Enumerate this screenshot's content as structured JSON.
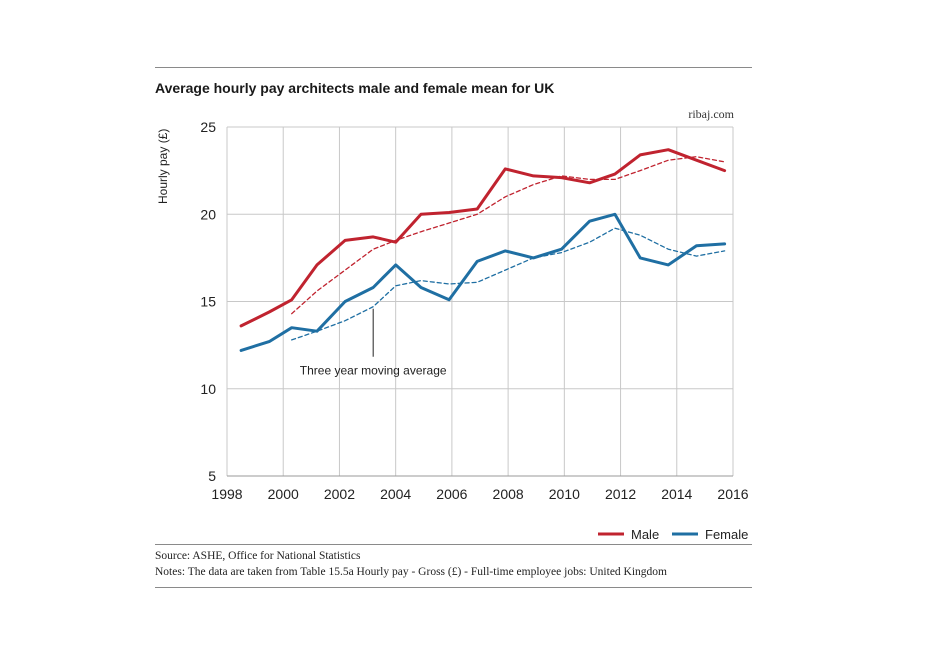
{
  "header": {
    "title": "Average hourly pay architects male and female mean for UK",
    "credit": "ribaj.com"
  },
  "footer": {
    "source": "Source: ASHE, Office for National Statistics",
    "notes": "Notes: The data are taken from Table 15.5a  Hourly pay - Gross (£) - Full-time employee jobs: United Kingdom"
  },
  "chart_data": {
    "type": "line",
    "title": "Average hourly pay architects male and female mean for UK",
    "xlabel": "",
    "ylabel": "Hourly pay (£)",
    "xlim": [
      1998,
      2016
    ],
    "ylim": [
      5,
      25
    ],
    "x_ticks": [
      1998,
      2000,
      2002,
      2004,
      2006,
      2008,
      2010,
      2012,
      2014,
      2016
    ],
    "y_ticks": [
      5,
      10,
      15,
      20,
      25
    ],
    "x": [
      1998.5,
      1999.5,
      2000.3,
      2001.2,
      2002.2,
      2003.2,
      2004.0,
      2004.9,
      2005.9,
      2006.9,
      2007.9,
      2008.9,
      2009.9,
      2010.9,
      2011.8,
      2012.7,
      2013.7,
      2014.7,
      2015.7
    ],
    "series": [
      {
        "name": "Male",
        "color": "#c0232f",
        "style": "solid",
        "values": [
          13.6,
          14.4,
          15.1,
          17.1,
          18.5,
          18.7,
          18.4,
          20.0,
          20.1,
          20.3,
          22.6,
          22.2,
          22.1,
          21.8,
          22.3,
          23.4,
          23.7,
          23.1,
          22.5
        ]
      },
      {
        "name": "Female",
        "color": "#1f6fa3",
        "style": "solid",
        "values": [
          12.2,
          12.7,
          13.5,
          13.3,
          15.0,
          15.8,
          17.1,
          15.8,
          15.1,
          17.3,
          17.9,
          17.5,
          18.0,
          19.6,
          20.0,
          17.5,
          17.1,
          18.2,
          18.3
        ]
      },
      {
        "name": "Male three year moving average",
        "color": "#c0232f",
        "style": "dashed",
        "x": [
          2000.3,
          2001.2,
          2002.2,
          2003.2,
          2004.0,
          2004.9,
          2005.9,
          2006.9,
          2007.9,
          2008.9,
          2009.9,
          2010.9,
          2011.8,
          2012.7,
          2013.7,
          2014.7,
          2015.7
        ],
        "values": [
          14.3,
          15.6,
          16.8,
          18.0,
          18.5,
          19.0,
          19.5,
          20.0,
          21.0,
          21.7,
          22.2,
          22.0,
          22.0,
          22.5,
          23.1,
          23.3,
          23.0
        ]
      },
      {
        "name": "Female three year moving average",
        "color": "#1f6fa3",
        "style": "dashed",
        "x": [
          2000.3,
          2001.2,
          2002.2,
          2003.2,
          2004.0,
          2004.9,
          2005.9,
          2006.9,
          2007.9,
          2008.9,
          2009.9,
          2010.9,
          2011.8,
          2012.7,
          2013.7,
          2014.7,
          2015.7
        ],
        "values": [
          12.8,
          13.3,
          13.9,
          14.7,
          15.9,
          16.2,
          16.0,
          16.1,
          16.8,
          17.5,
          17.8,
          18.4,
          19.2,
          18.8,
          18.0,
          17.6,
          17.9
        ]
      }
    ],
    "annotation": {
      "text": "Three year moving average",
      "x": 2003.2,
      "y": 14.7
    },
    "legend": {
      "position": "bottom-right",
      "entries": [
        "Male",
        "Female"
      ]
    },
    "grid": true
  }
}
